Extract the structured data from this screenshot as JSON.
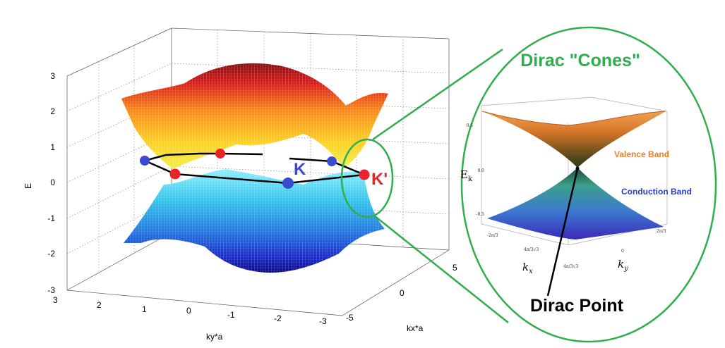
{
  "main_plot": {
    "z_ticks": [
      "3",
      "2",
      "1",
      "0",
      "-1",
      "-2",
      "-3"
    ],
    "ky_ticks": [
      "3",
      "2",
      "1",
      "0",
      "-1",
      "-2",
      "-3"
    ],
    "kx_ticks": [
      "5",
      "0",
      "-5"
    ],
    "z_label": "E",
    "ky_label": "ky*a",
    "kx_label": "kx*a",
    "point_K": "K",
    "point_Kprime": "K'"
  },
  "inset": {
    "title": "Dirac \"Cones\"",
    "valence_label": "Valence Band",
    "conduction_label": "Conduction Band",
    "dirac_point_label": "Dirac Point",
    "e_ticks": [
      "0.5",
      "0.0",
      "-0.5"
    ],
    "e_label_main": "E",
    "e_label_sub": "k",
    "kx_label": "k",
    "kx_sub": "x",
    "ky_label": "k",
    "ky_sub": "y",
    "kx_ticks": [
      "-2π/3",
      "4π/3√3",
      "4π/3√3"
    ],
    "ky_ticks": [
      "0",
      "2π/3"
    ]
  },
  "colors": {
    "green": "#2fae4f",
    "red_point": "#e8242a",
    "blue_point": "#3a4bd0",
    "K_text": "#3b48c8",
    "Kprime_text": "#e02a2a",
    "valence_text": "#f07f20",
    "conduction_text": "#2c3cc8"
  }
}
